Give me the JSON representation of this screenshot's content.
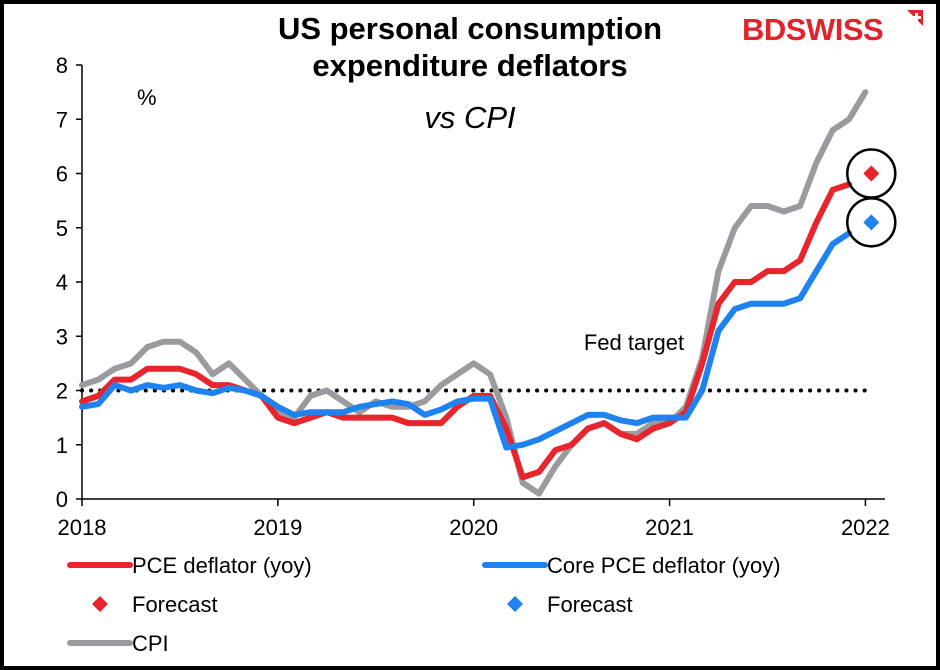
{
  "header": {
    "title_line1": "US personal consumption",
    "title_line2": "expenditure deflators",
    "subtitle": "vs CPI",
    "logo_bd": "BD",
    "logo_swiss": "SWISS",
    "logo_color": "#e1242b"
  },
  "chart_data": {
    "type": "line",
    "unit_label": "%",
    "x_tick_labels": [
      "2018",
      "2019",
      "2020",
      "2021",
      "2022"
    ],
    "x_tick_values": [
      2018,
      2019,
      2020,
      2021,
      2022
    ],
    "xlim": [
      2018,
      2022.1
    ],
    "ylim": [
      0,
      8
    ],
    "y_ticks": [
      0,
      1,
      2,
      3,
      4,
      5,
      6,
      7,
      8
    ],
    "reference_line": {
      "value": 2,
      "label": "Fed target",
      "style": "dotted",
      "color": "#000000"
    },
    "series": [
      {
        "name": "PCE deflator (yoy)",
        "color": "#e8242c",
        "x_start": 2018,
        "x_step": 0.08333,
        "values": [
          1.8,
          1.9,
          2.2,
          2.2,
          2.4,
          2.4,
          2.4,
          2.3,
          2.1,
          2.1,
          2.0,
          1.9,
          1.5,
          1.4,
          1.5,
          1.6,
          1.5,
          1.5,
          1.5,
          1.5,
          1.4,
          1.4,
          1.4,
          1.7,
          1.9,
          1.9,
          1.3,
          0.4,
          0.5,
          0.9,
          1.0,
          1.3,
          1.4,
          1.2,
          1.1,
          1.3,
          1.4,
          1.6,
          2.5,
          3.6,
          4.0,
          4.0,
          4.2,
          4.2,
          4.4,
          5.1,
          5.7,
          5.8
        ]
      },
      {
        "name": "Core PCE deflator (yoy)",
        "color": "#1e82f0",
        "x_start": 2018,
        "x_step": 0.08333,
        "values": [
          1.7,
          1.75,
          2.1,
          2.0,
          2.1,
          2.05,
          2.1,
          2.0,
          1.95,
          2.05,
          2.0,
          1.9,
          1.7,
          1.55,
          1.6,
          1.6,
          1.6,
          1.7,
          1.75,
          1.8,
          1.75,
          1.55,
          1.65,
          1.8,
          1.85,
          1.85,
          0.95,
          1.0,
          1.1,
          1.25,
          1.4,
          1.55,
          1.55,
          1.45,
          1.4,
          1.5,
          1.5,
          1.5,
          2.0,
          3.1,
          3.5,
          3.6,
          3.6,
          3.6,
          3.7,
          4.2,
          4.7,
          4.9
        ]
      },
      {
        "name": "CPI",
        "color": "#9b9b9f",
        "x_start": 2018,
        "x_step": 0.08333,
        "values": [
          2.1,
          2.2,
          2.4,
          2.5,
          2.8,
          2.9,
          2.9,
          2.7,
          2.3,
          2.5,
          2.2,
          1.9,
          1.6,
          1.5,
          1.9,
          2.0,
          1.8,
          1.6,
          1.8,
          1.7,
          1.7,
          1.8,
          2.1,
          2.3,
          2.5,
          2.3,
          1.5,
          0.3,
          0.1,
          0.6,
          1.0,
          1.3,
          1.4,
          1.2,
          1.2,
          1.4,
          1.4,
          1.7,
          2.6,
          4.2,
          5.0,
          5.4,
          5.4,
          5.3,
          5.4,
          6.2,
          6.8,
          7.0,
          7.5
        ]
      }
    ],
    "forecasts": [
      {
        "name": "Forecast",
        "series": "PCE deflator (yoy)",
        "x": 2022.03,
        "y": 6.0,
        "color": "#e8242c",
        "circled": true
      },
      {
        "name": "Forecast",
        "series": "Core PCE deflator (yoy)",
        "x": 2022.03,
        "y": 5.1,
        "color": "#1e82f0",
        "circled": true
      }
    ],
    "legend": [
      {
        "label": "PCE deflator (yoy)",
        "kind": "line",
        "color": "#e8242c"
      },
      {
        "label": "Core PCE deflator (yoy)",
        "kind": "line",
        "color": "#1e82f0"
      },
      {
        "label": "Forecast",
        "kind": "diamond",
        "color": "#e8242c"
      },
      {
        "label": "Forecast",
        "kind": "diamond",
        "color": "#1e82f0"
      },
      {
        "label": "CPI",
        "kind": "line",
        "color": "#9b9b9f"
      }
    ],
    "legend_placement": "bottom"
  }
}
